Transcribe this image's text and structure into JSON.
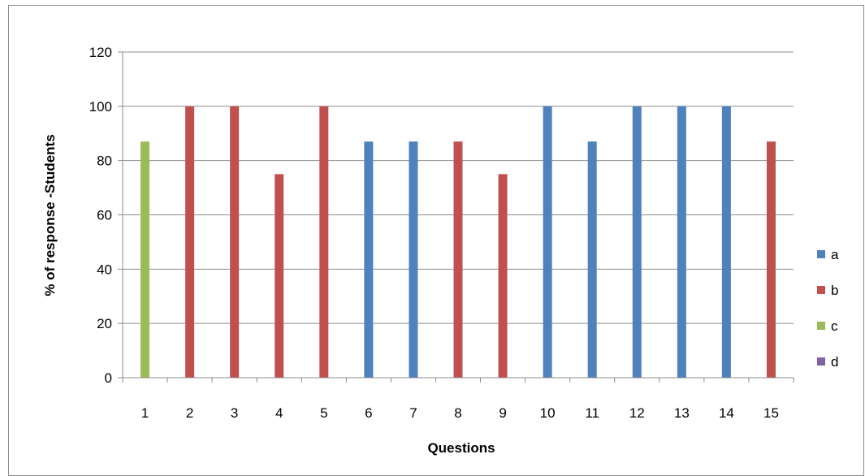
{
  "chart_data": {
    "type": "bar",
    "xlabel": "Questions",
    "ylabel": "% of response -Students",
    "ylim": [
      0,
      120
    ],
    "yticks": [
      0,
      20,
      40,
      60,
      80,
      100,
      120
    ],
    "grid": true,
    "legend_position": "right",
    "categories": [
      "1",
      "2",
      "3",
      "4",
      "5",
      "6",
      "7",
      "8",
      "9",
      "10",
      "11",
      "12",
      "13",
      "14",
      "15"
    ],
    "series": [
      {
        "name": "a",
        "color": "#4F81BD",
        "values": [
          0,
          0,
          0,
          0,
          0,
          87,
          87,
          0,
          0,
          100,
          87,
          100,
          100,
          100,
          0
        ]
      },
      {
        "name": "b",
        "color": "#C0504D",
        "values": [
          0,
          100,
          100,
          75,
          100,
          0,
          0,
          87,
          75,
          0,
          0,
          0,
          0,
          0,
          87
        ]
      },
      {
        "name": "c",
        "color": "#9BBB59",
        "values": [
          87,
          0,
          0,
          0,
          0,
          0,
          0,
          0,
          0,
          0,
          0,
          0,
          0,
          0,
          0
        ]
      },
      {
        "name": "d",
        "color": "#8064A2",
        "values": [
          0,
          0,
          0,
          0,
          0,
          0,
          0,
          0,
          0,
          0,
          0,
          0,
          0,
          0,
          0
        ]
      }
    ]
  }
}
